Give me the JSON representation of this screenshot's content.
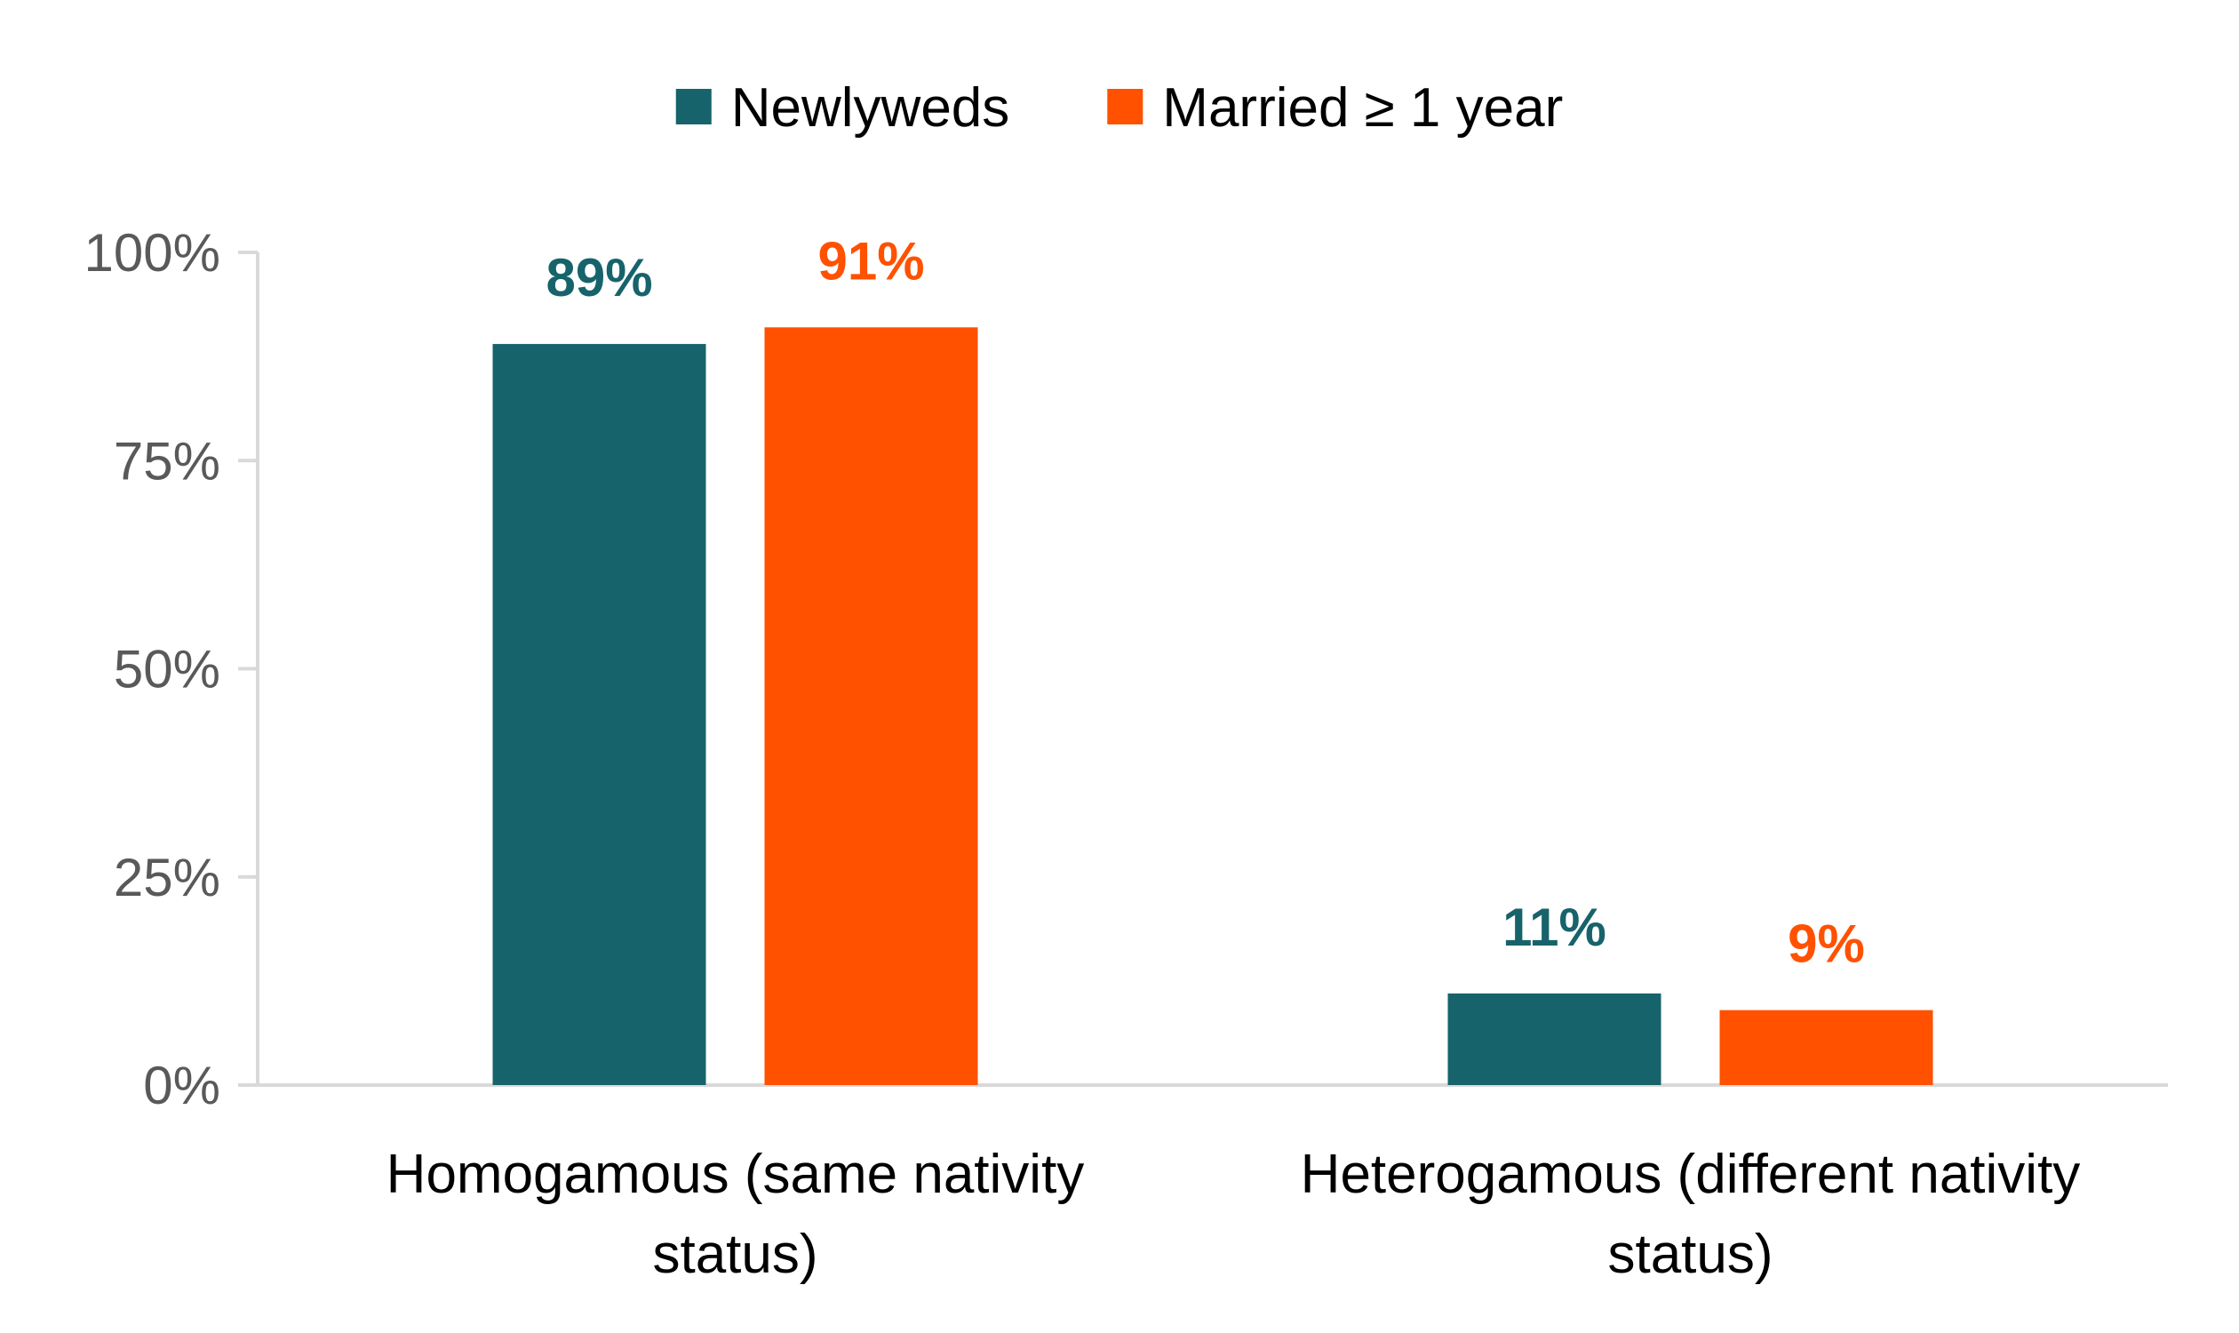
{
  "chart_data": {
    "type": "bar",
    "categories": [
      [
        "Homogamous (same nativity",
        "status)"
      ],
      [
        "Heterogamous (different nativity",
        "status)"
      ]
    ],
    "series": [
      {
        "name": "Newlyweds",
        "color": "#17636B",
        "values": [
          89,
          11
        ],
        "labels": [
          "89%",
          "11%"
        ]
      },
      {
        "name": "Married ≥ 1 year",
        "color": "#FF5100",
        "values": [
          91,
          9
        ],
        "labels": [
          "91%",
          "9%"
        ]
      }
    ],
    "ylim": [
      0,
      100
    ],
    "yticks": [
      0,
      25,
      50,
      75,
      100
    ],
    "ytick_labels": [
      "0%",
      "25%",
      "50%",
      "75%",
      "100%"
    ],
    "grid": false,
    "legend_position": "top-center",
    "axis_color": "#D9D9D9",
    "tick_label_color": "#595959"
  }
}
